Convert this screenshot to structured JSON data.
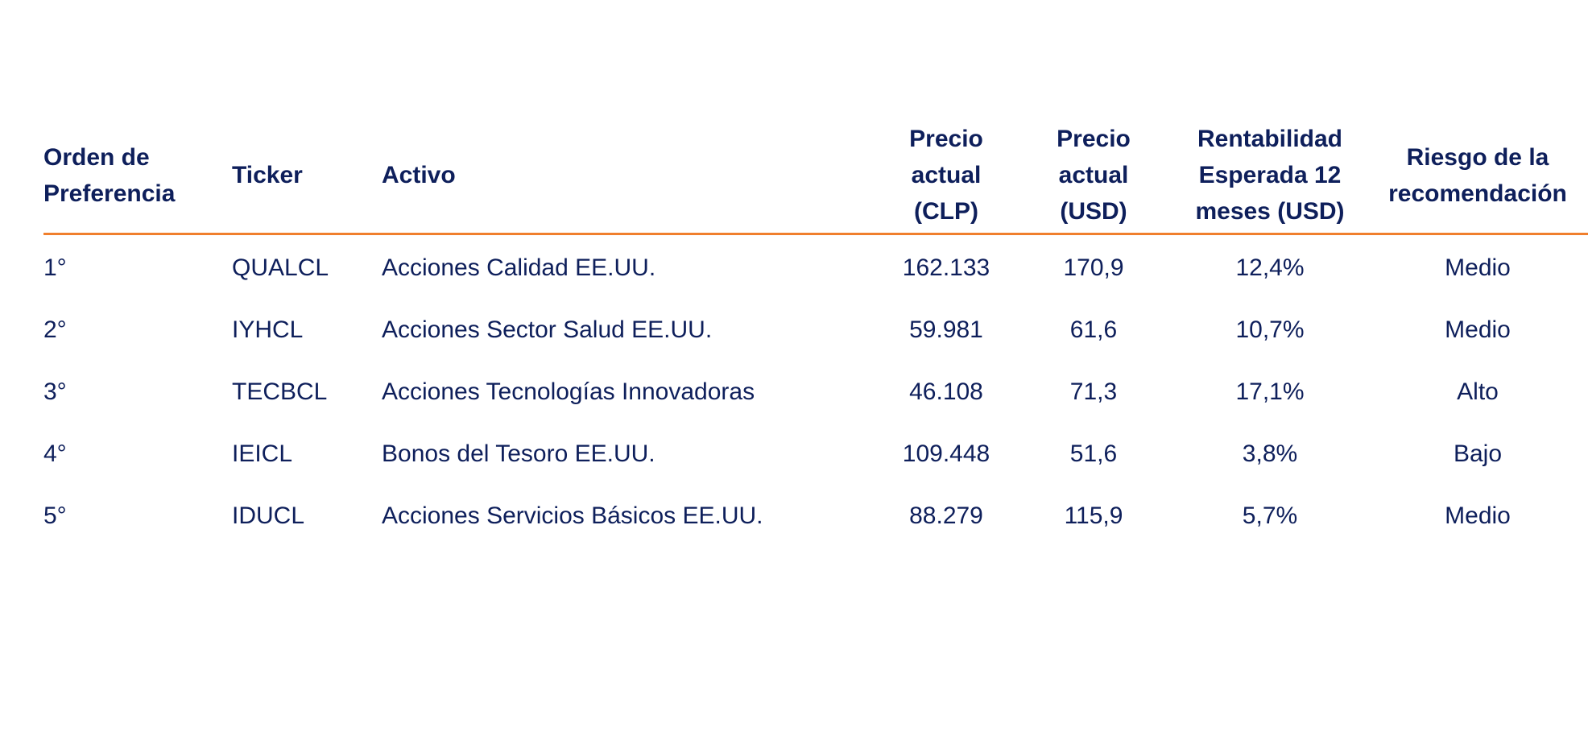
{
  "table": {
    "headers": [
      {
        "key": "order",
        "label": "Orden de\nPreferencia",
        "align": "left"
      },
      {
        "key": "ticker",
        "label": "Ticker",
        "align": "left"
      },
      {
        "key": "asset",
        "label": "Activo",
        "align": "left"
      },
      {
        "key": "price_clp",
        "label": "Precio\nactual\n(CLP)",
        "align": "center"
      },
      {
        "key": "price_usd",
        "label": "Precio\nactual\n(USD)",
        "align": "center"
      },
      {
        "key": "return",
        "label": "Rentabilidad\nEsperada 12\nmeses (USD)",
        "align": "center"
      },
      {
        "key": "risk",
        "label": "Riesgo de la\nrecomendación",
        "align": "center"
      }
    ],
    "rows": [
      {
        "order": "1°",
        "ticker": "QUALCL",
        "asset": "Acciones Calidad EE.UU.",
        "price_clp": "162.133",
        "price_usd": "170,9",
        "return": "12,4%",
        "risk": "Medio"
      },
      {
        "order": "2°",
        "ticker": "IYHCL",
        "asset": "Acciones Sector Salud EE.UU.",
        "price_clp": "59.981",
        "price_usd": "61,6",
        "return": "10,7%",
        "risk": "Medio"
      },
      {
        "order": "3°",
        "ticker": "TECBCL",
        "asset": "Acciones Tecnologías Innovadoras",
        "price_clp": "46.108",
        "price_usd": "71,3",
        "return": "17,1%",
        "risk": "Alto"
      },
      {
        "order": "4°",
        "ticker": "IEICL",
        "asset": "Bonos del Tesoro EE.UU.",
        "price_clp": "109.448",
        "price_usd": "51,6",
        "return": "3,8%",
        "risk": "Bajo"
      },
      {
        "order": "5°",
        "ticker": "IDUCL",
        "asset": "Acciones Servicios Básicos EE.UU.",
        "price_clp": "88.279",
        "price_usd": "115,9",
        "return": "5,7%",
        "risk": "Medio"
      }
    ]
  },
  "colors": {
    "text": "#0e1f5b",
    "header_rule": "#f07f2d"
  }
}
